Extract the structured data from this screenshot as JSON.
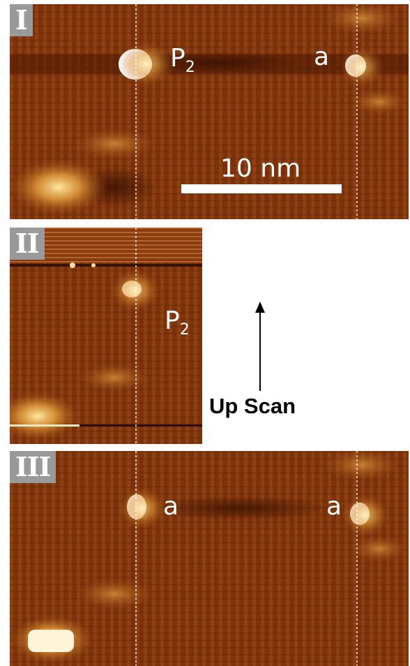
{
  "panels": [
    {
      "id": "I",
      "roman_label": "I",
      "labels": [
        {
          "key": "p2",
          "text": "P",
          "sub": "2"
        },
        {
          "key": "a",
          "text": "a",
          "sub": ""
        }
      ],
      "scale_bar_text": "10 nm"
    },
    {
      "id": "II",
      "roman_label": "II",
      "labels": [
        {
          "key": "p2",
          "text": "P",
          "sub": "2"
        }
      ]
    },
    {
      "id": "III",
      "roman_label": "III",
      "labels": [
        {
          "key": "a1",
          "text": "a",
          "sub": ""
        },
        {
          "key": "a2",
          "text": "a",
          "sub": ""
        }
      ]
    }
  ],
  "scan_direction": {
    "label": "Up Scan",
    "icon": "up-arrow-icon"
  },
  "colors": {
    "substrate": "#7a2e08",
    "stripe": "#a55a1e",
    "feature": "#ffffff",
    "bright": "#e8a040"
  }
}
